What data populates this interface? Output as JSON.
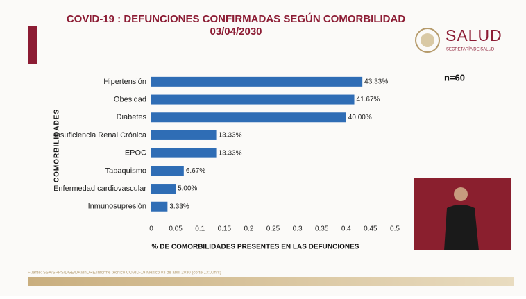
{
  "header": {
    "logo_title": "SALUD",
    "logo_subtitle": "SECRETARÍA DE SALUD"
  },
  "chart_data": {
    "type": "hbar",
    "title": "COVID-19 : DEFUNCIONES CONFIRMADAS SEGÚN COMORBILIDAD",
    "subtitle": "03/04/2030",
    "annotation": "n=60",
    "x_label": "% DE COMORBILIDADES PRESENTES EN LAS DEFUNCIONES",
    "y_label": "COMORBILIDADES",
    "source": "Fuente: SSA/SPPS/DGE/DAI/InDRE/Informe técnico COVID-19 México 03 de abril 2030 (corte 13:00hrs)",
    "categories": [
      "Hipertensión",
      "Obesidad",
      "Diabetes",
      "Insuficiencia Renal Crónica",
      "EPOC",
      "Tabaquismo",
      "Enfermedad cardiovascular",
      "Inmunosupresión"
    ],
    "values": [
      0.4333,
      0.4167,
      0.4,
      0.1333,
      0.1333,
      0.0667,
      0.05,
      0.0333
    ],
    "value_labels": [
      "43.33%",
      "41.67%",
      "40.00%",
      "13.33%",
      "13.33%",
      "6.67%",
      "5.00%",
      "3.33%"
    ],
    "color": "#2f6db5",
    "xlim": [
      0,
      0.5
    ],
    "xticks": [
      0,
      0.05,
      0.1,
      0.15,
      0.2,
      0.25,
      0.3,
      0.35,
      0.4,
      0.45,
      0.5
    ],
    "grid": false
  }
}
